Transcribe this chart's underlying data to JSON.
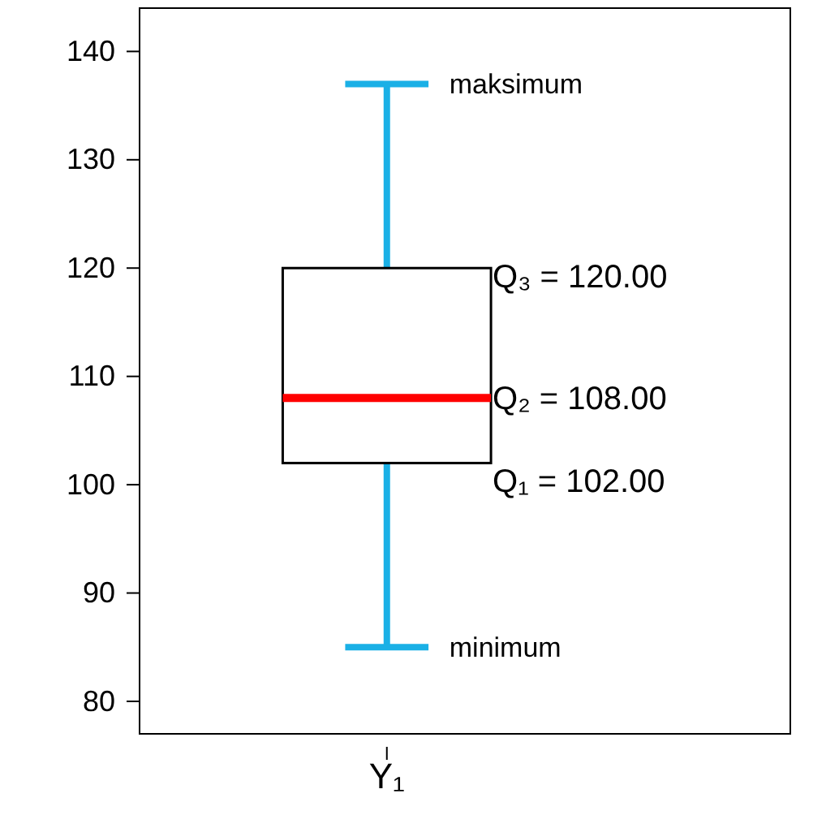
{
  "chart_data": {
    "type": "box",
    "categories": [
      "Y₁"
    ],
    "series": [
      {
        "color": "#000000",
        "boxes": [
          {
            "low": 85,
            "q1": 102,
            "median": 108,
            "q3": 120,
            "high": 137
          }
        ]
      }
    ],
    "ylim": [
      77,
      144
    ],
    "yticks": [
      80,
      90,
      100,
      110,
      120,
      130,
      140
    ],
    "grid": false,
    "annotations": [
      "maksimum",
      "Q₃ = 120.00",
      "Q₂ = 108.00",
      "Q₁ = 102.00",
      "minimum"
    ]
  }
}
